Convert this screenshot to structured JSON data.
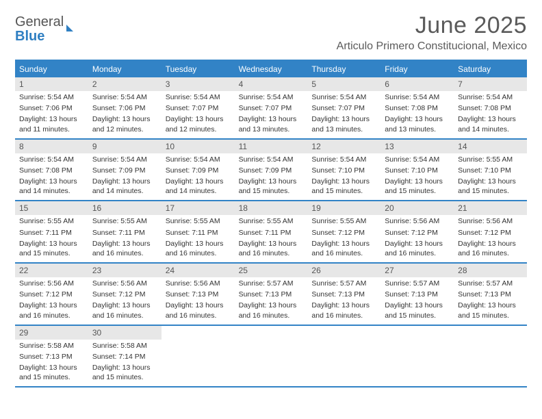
{
  "logo": {
    "top": "General",
    "bottom": "Blue"
  },
  "title": "June 2025",
  "subtitle": "Articulo Primero Constitucional, Mexico",
  "colors": {
    "accent": "#3283c6",
    "daybar": "#e7e7e7",
    "text": "#333333",
    "title_text": "#5a5a5a",
    "background": "#ffffff"
  },
  "weekdays": [
    "Sunday",
    "Monday",
    "Tuesday",
    "Wednesday",
    "Thursday",
    "Friday",
    "Saturday"
  ],
  "weeks": [
    [
      {
        "day": "1",
        "sunrise": "Sunrise: 5:54 AM",
        "sunset": "Sunset: 7:06 PM",
        "daylight": "Daylight: 13 hours and 11 minutes."
      },
      {
        "day": "2",
        "sunrise": "Sunrise: 5:54 AM",
        "sunset": "Sunset: 7:06 PM",
        "daylight": "Daylight: 13 hours and 12 minutes."
      },
      {
        "day": "3",
        "sunrise": "Sunrise: 5:54 AM",
        "sunset": "Sunset: 7:07 PM",
        "daylight": "Daylight: 13 hours and 12 minutes."
      },
      {
        "day": "4",
        "sunrise": "Sunrise: 5:54 AM",
        "sunset": "Sunset: 7:07 PM",
        "daylight": "Daylight: 13 hours and 13 minutes."
      },
      {
        "day": "5",
        "sunrise": "Sunrise: 5:54 AM",
        "sunset": "Sunset: 7:07 PM",
        "daylight": "Daylight: 13 hours and 13 minutes."
      },
      {
        "day": "6",
        "sunrise": "Sunrise: 5:54 AM",
        "sunset": "Sunset: 7:08 PM",
        "daylight": "Daylight: 13 hours and 13 minutes."
      },
      {
        "day": "7",
        "sunrise": "Sunrise: 5:54 AM",
        "sunset": "Sunset: 7:08 PM",
        "daylight": "Daylight: 13 hours and 14 minutes."
      }
    ],
    [
      {
        "day": "8",
        "sunrise": "Sunrise: 5:54 AM",
        "sunset": "Sunset: 7:08 PM",
        "daylight": "Daylight: 13 hours and 14 minutes."
      },
      {
        "day": "9",
        "sunrise": "Sunrise: 5:54 AM",
        "sunset": "Sunset: 7:09 PM",
        "daylight": "Daylight: 13 hours and 14 minutes."
      },
      {
        "day": "10",
        "sunrise": "Sunrise: 5:54 AM",
        "sunset": "Sunset: 7:09 PM",
        "daylight": "Daylight: 13 hours and 14 minutes."
      },
      {
        "day": "11",
        "sunrise": "Sunrise: 5:54 AM",
        "sunset": "Sunset: 7:09 PM",
        "daylight": "Daylight: 13 hours and 15 minutes."
      },
      {
        "day": "12",
        "sunrise": "Sunrise: 5:54 AM",
        "sunset": "Sunset: 7:10 PM",
        "daylight": "Daylight: 13 hours and 15 minutes."
      },
      {
        "day": "13",
        "sunrise": "Sunrise: 5:54 AM",
        "sunset": "Sunset: 7:10 PM",
        "daylight": "Daylight: 13 hours and 15 minutes."
      },
      {
        "day": "14",
        "sunrise": "Sunrise: 5:55 AM",
        "sunset": "Sunset: 7:10 PM",
        "daylight": "Daylight: 13 hours and 15 minutes."
      }
    ],
    [
      {
        "day": "15",
        "sunrise": "Sunrise: 5:55 AM",
        "sunset": "Sunset: 7:11 PM",
        "daylight": "Daylight: 13 hours and 15 minutes."
      },
      {
        "day": "16",
        "sunrise": "Sunrise: 5:55 AM",
        "sunset": "Sunset: 7:11 PM",
        "daylight": "Daylight: 13 hours and 16 minutes."
      },
      {
        "day": "17",
        "sunrise": "Sunrise: 5:55 AM",
        "sunset": "Sunset: 7:11 PM",
        "daylight": "Daylight: 13 hours and 16 minutes."
      },
      {
        "day": "18",
        "sunrise": "Sunrise: 5:55 AM",
        "sunset": "Sunset: 7:11 PM",
        "daylight": "Daylight: 13 hours and 16 minutes."
      },
      {
        "day": "19",
        "sunrise": "Sunrise: 5:55 AM",
        "sunset": "Sunset: 7:12 PM",
        "daylight": "Daylight: 13 hours and 16 minutes."
      },
      {
        "day": "20",
        "sunrise": "Sunrise: 5:56 AM",
        "sunset": "Sunset: 7:12 PM",
        "daylight": "Daylight: 13 hours and 16 minutes."
      },
      {
        "day": "21",
        "sunrise": "Sunrise: 5:56 AM",
        "sunset": "Sunset: 7:12 PM",
        "daylight": "Daylight: 13 hours and 16 minutes."
      }
    ],
    [
      {
        "day": "22",
        "sunrise": "Sunrise: 5:56 AM",
        "sunset": "Sunset: 7:12 PM",
        "daylight": "Daylight: 13 hours and 16 minutes."
      },
      {
        "day": "23",
        "sunrise": "Sunrise: 5:56 AM",
        "sunset": "Sunset: 7:12 PM",
        "daylight": "Daylight: 13 hours and 16 minutes."
      },
      {
        "day": "24",
        "sunrise": "Sunrise: 5:56 AM",
        "sunset": "Sunset: 7:13 PM",
        "daylight": "Daylight: 13 hours and 16 minutes."
      },
      {
        "day": "25",
        "sunrise": "Sunrise: 5:57 AM",
        "sunset": "Sunset: 7:13 PM",
        "daylight": "Daylight: 13 hours and 16 minutes."
      },
      {
        "day": "26",
        "sunrise": "Sunrise: 5:57 AM",
        "sunset": "Sunset: 7:13 PM",
        "daylight": "Daylight: 13 hours and 16 minutes."
      },
      {
        "day": "27",
        "sunrise": "Sunrise: 5:57 AM",
        "sunset": "Sunset: 7:13 PM",
        "daylight": "Daylight: 13 hours and 15 minutes."
      },
      {
        "day": "28",
        "sunrise": "Sunrise: 5:57 AM",
        "sunset": "Sunset: 7:13 PM",
        "daylight": "Daylight: 13 hours and 15 minutes."
      }
    ],
    [
      {
        "day": "29",
        "sunrise": "Sunrise: 5:58 AM",
        "sunset": "Sunset: 7:13 PM",
        "daylight": "Daylight: 13 hours and 15 minutes."
      },
      {
        "day": "30",
        "sunrise": "Sunrise: 5:58 AM",
        "sunset": "Sunset: 7:14 PM",
        "daylight": "Daylight: 13 hours and 15 minutes."
      },
      null,
      null,
      null,
      null,
      null
    ]
  ]
}
